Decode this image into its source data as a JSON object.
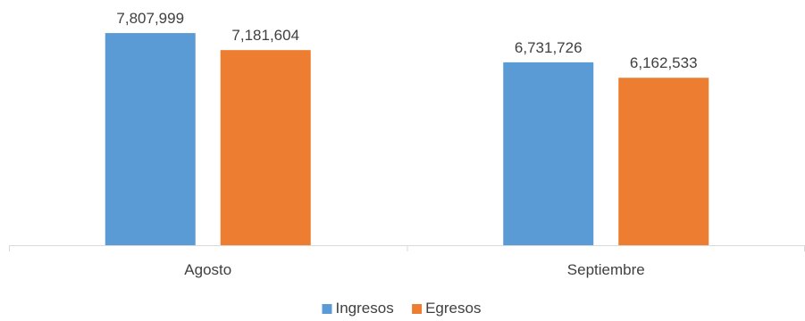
{
  "chart_data": {
    "type": "bar",
    "categories": [
      "Agosto",
      "Septiembre"
    ],
    "series": [
      {
        "name": "Ingresos",
        "color": "#5B9BD5",
        "values": [
          7807999,
          6731726
        ],
        "labels": [
          "7,807,999",
          "6,731,726"
        ]
      },
      {
        "name": "Egresos",
        "color": "#ED7D31",
        "values": [
          7181604,
          6162533
        ],
        "labels": [
          "7,181,604",
          "6,162,533"
        ]
      }
    ],
    "title": "",
    "xlabel": "",
    "ylabel": "",
    "ylim": [
      0,
      8500000
    ],
    "grid": false,
    "legend": "bottom-center",
    "data_labels": true
  }
}
